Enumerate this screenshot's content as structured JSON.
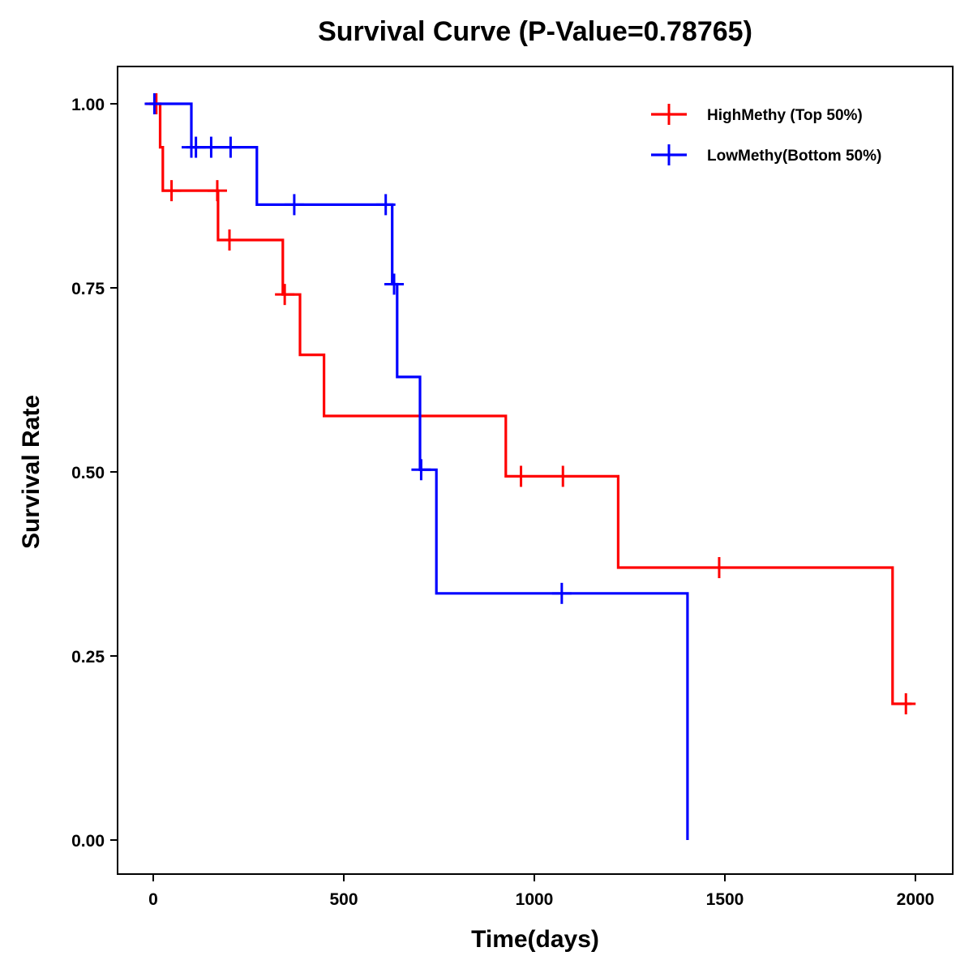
{
  "chart_data": {
    "type": "line",
    "subtype": "kaplan-meier-step",
    "title": "Survival Curve (P-Value=0.78765)",
    "xlabel": "Time(days)",
    "ylabel": "Survival Rate",
    "xlim": [
      -90,
      2080
    ],
    "ylim": [
      -0.05,
      1.05
    ],
    "x_ticks": [
      0,
      500,
      1000,
      1500,
      2000
    ],
    "x_tick_labels": [
      "0",
      "500",
      "1000",
      "1500",
      "2000"
    ],
    "y_ticks": [
      0,
      0.25,
      0.5,
      0.75,
      1
    ],
    "y_tick_labels": [
      "0.00",
      "0.25",
      "0.50",
      "0.75",
      "1.00"
    ],
    "grid": false,
    "legend_position": "top-right",
    "series": [
      {
        "name": "HighMethy (Top 50%)",
        "color": "#ff0000",
        "steps": [
          [
            -20,
            1.0
          ],
          [
            18,
            1.0
          ],
          [
            18,
            0.941
          ],
          [
            25,
            0.941
          ],
          [
            25,
            0.882
          ],
          [
            170,
            0.882
          ],
          [
            170,
            0.815
          ],
          [
            340,
            0.815
          ],
          [
            340,
            0.741
          ],
          [
            385,
            0.741
          ],
          [
            385,
            0.659
          ],
          [
            448,
            0.659
          ],
          [
            448,
            0.576
          ],
          [
            925,
            0.576
          ],
          [
            925,
            0.494
          ],
          [
            1220,
            0.494
          ],
          [
            1220,
            0.37
          ],
          [
            1940,
            0.37
          ],
          [
            1940,
            0.185
          ],
          [
            1990,
            0.185
          ]
        ],
        "censor_x": [
          8,
          48,
          168,
          200,
          345,
          965,
          1075,
          1485,
          1975
        ],
        "censor_y": [
          1.0,
          0.882,
          0.882,
          0.815,
          0.741,
          0.494,
          0.494,
          0.37,
          0.185
        ]
      },
      {
        "name": "LowMethy(Bottom 50%)",
        "color": "#0000ff",
        "steps": [
          [
            -10,
            1.0
          ],
          [
            100,
            1.0
          ],
          [
            100,
            0.941
          ],
          [
            272,
            0.941
          ],
          [
            272,
            0.863
          ],
          [
            627,
            0.863
          ],
          [
            627,
            0.755
          ],
          [
            640,
            0.755
          ],
          [
            640,
            0.629
          ],
          [
            700,
            0.629
          ],
          [
            700,
            0.503
          ],
          [
            743,
            0.503
          ],
          [
            743,
            0.335
          ],
          [
            1402,
            0.335
          ],
          [
            1402,
            0.0
          ]
        ],
        "censor_x": [
          3,
          100,
          112,
          152,
          203,
          370,
          610,
          632,
          703,
          1072
        ],
        "censor_y": [
          1.0,
          0.941,
          0.941,
          0.941,
          0.941,
          0.863,
          0.863,
          0.755,
          0.503,
          0.335
        ]
      }
    ]
  }
}
